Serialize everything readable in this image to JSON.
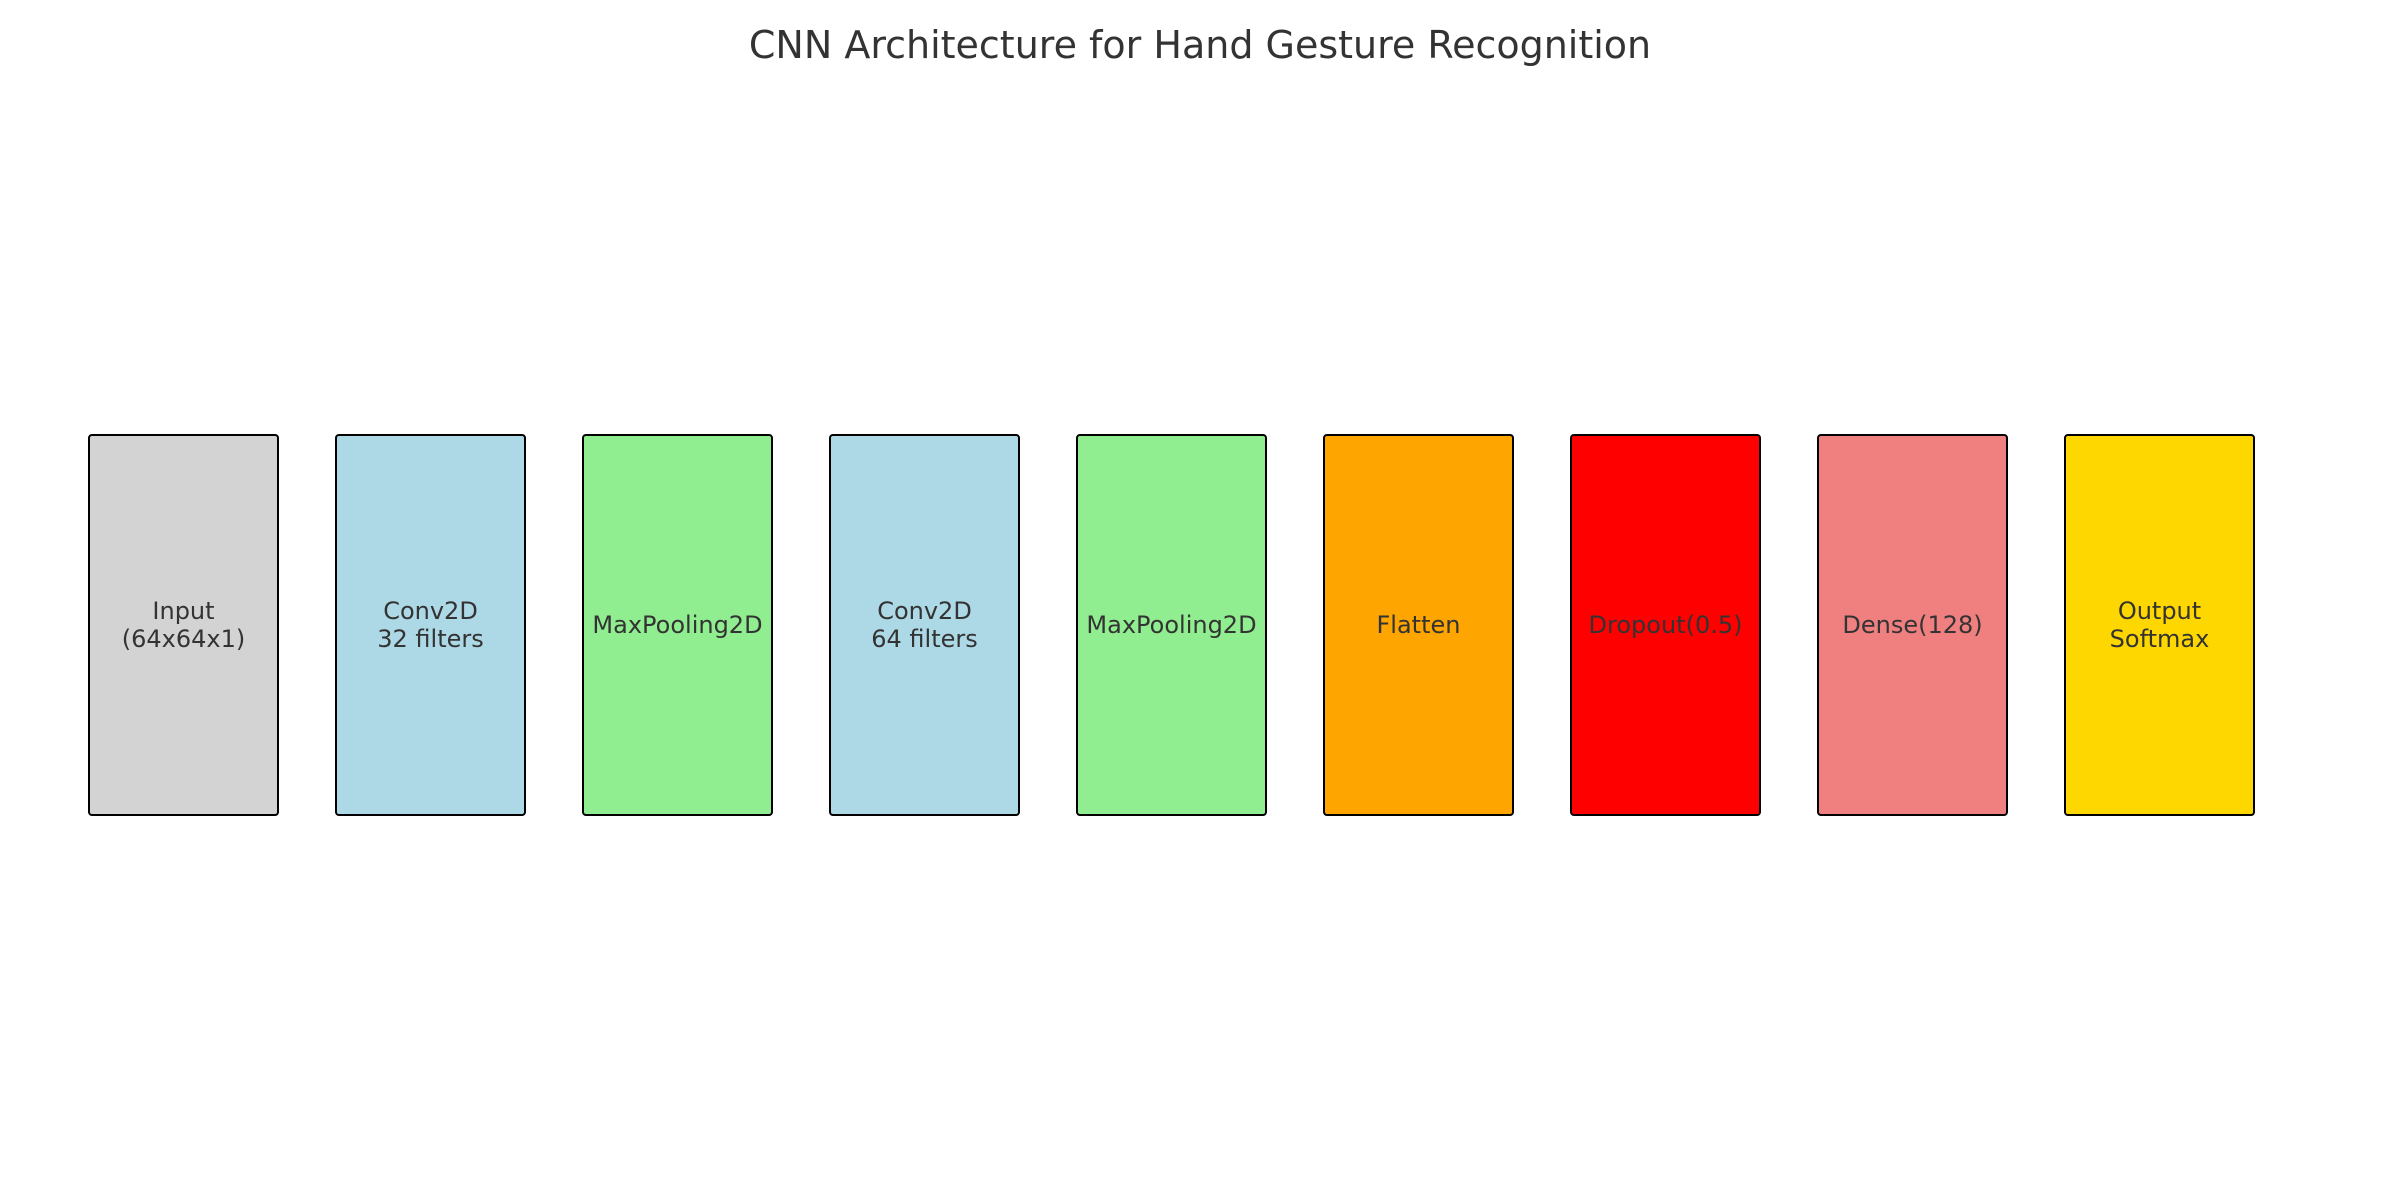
{
  "title": "CNN Architecture for Hand Gesture Recognition",
  "layers": [
    {
      "label": "Input\n(64x64x1)",
      "color": "#d3d3d3"
    },
    {
      "label": "Conv2D\n32 filters",
      "color": "#add8e6"
    },
    {
      "label": "MaxPooling2D",
      "color": "#90ee90"
    },
    {
      "label": "Conv2D\n64 filters",
      "color": "#add8e6"
    },
    {
      "label": "MaxPooling2D",
      "color": "#90ee90"
    },
    {
      "label": "Flatten",
      "color": "#ffa500"
    },
    {
      "label": "Dropout(0.5)",
      "color": "#ff0000"
    },
    {
      "label": "Dense(128)",
      "color": "#f08080"
    },
    {
      "label": "Output\nSoftmax",
      "color": "#ffd700"
    }
  ]
}
